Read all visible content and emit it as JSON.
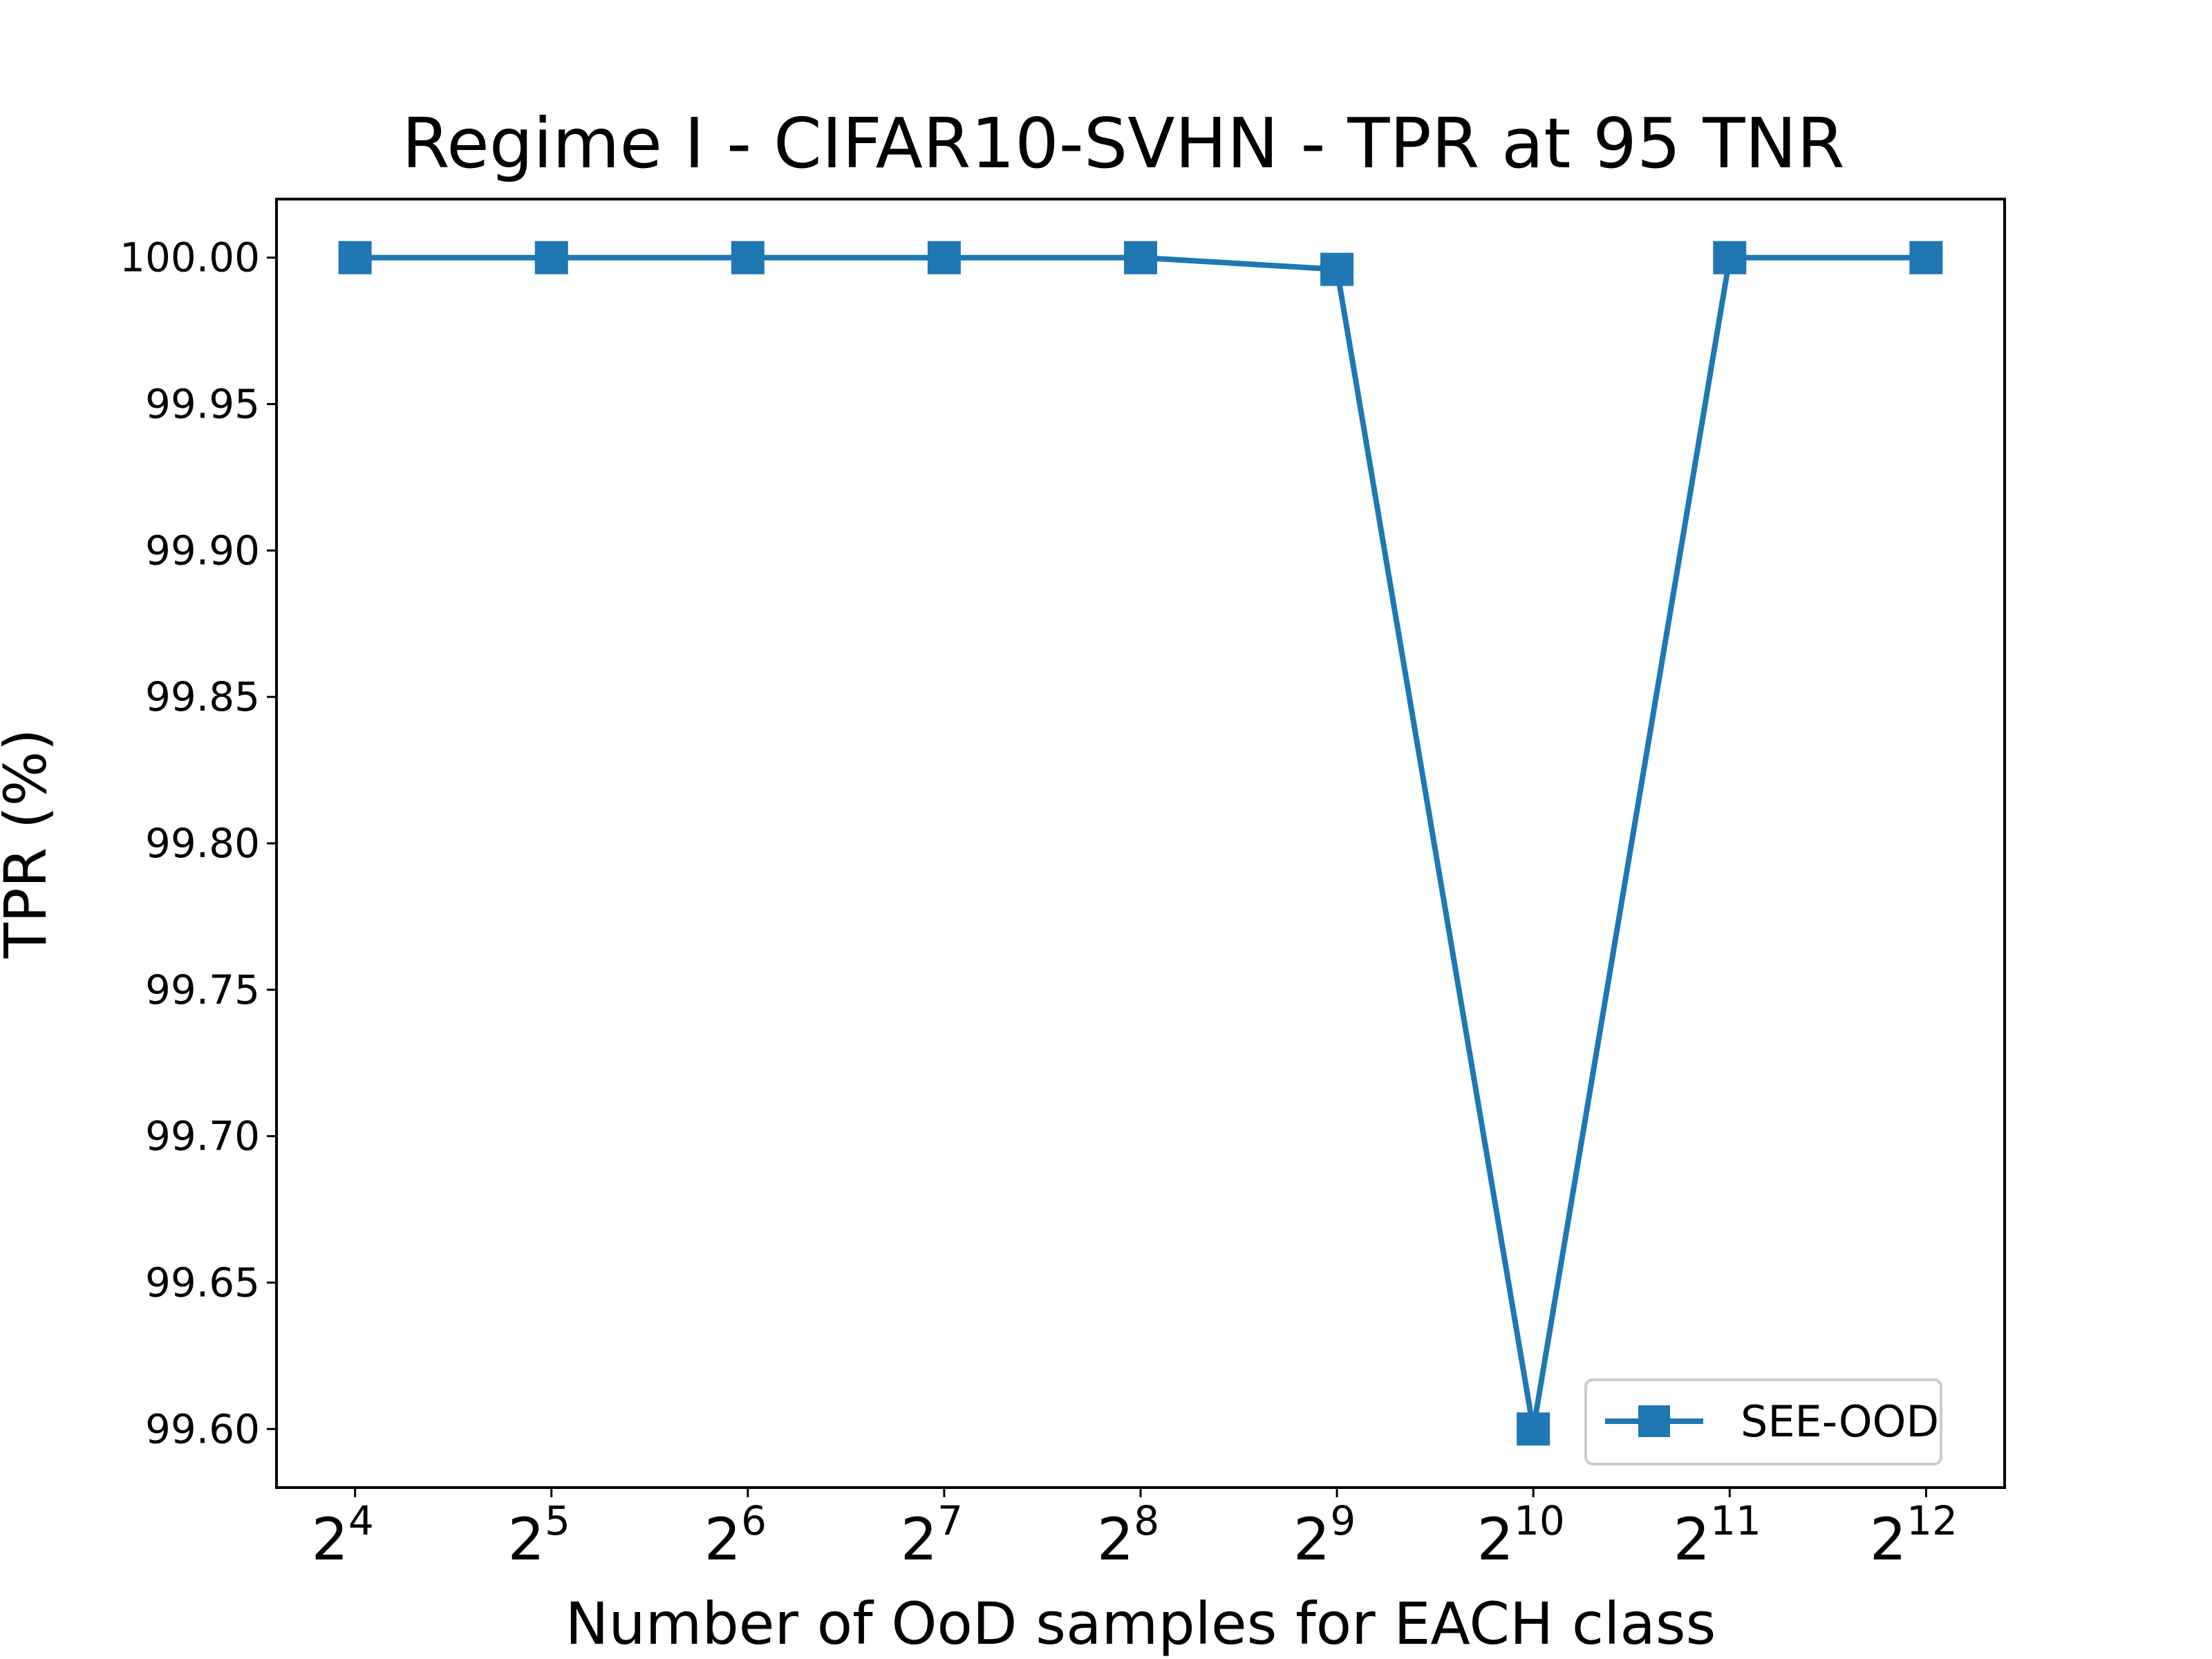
{
  "chart_data": {
    "type": "line",
    "title": "Regime I - CIFAR10-SVHN - TPR at 95 TNR",
    "xlabel": "Number of OoD samples for EACH class",
    "ylabel": "TPR (%)",
    "x_ticks": [
      {
        "base": "2",
        "exp": "4"
      },
      {
        "base": "2",
        "exp": "5"
      },
      {
        "base": "2",
        "exp": "6"
      },
      {
        "base": "2",
        "exp": "7"
      },
      {
        "base": "2",
        "exp": "8"
      },
      {
        "base": "2",
        "exp": "9"
      },
      {
        "base": "2",
        "exp": "10"
      },
      {
        "base": "2",
        "exp": "11"
      },
      {
        "base": "2",
        "exp": "12"
      }
    ],
    "x": [
      16,
      32,
      64,
      128,
      256,
      512,
      1024,
      2048,
      4096
    ],
    "x_scale": "log2",
    "ylim": [
      99.58,
      100.02
    ],
    "y_ticks": [
      "99.60",
      "99.65",
      "99.70",
      "99.75",
      "99.80",
      "99.85",
      "99.90",
      "99.95",
      "100.00"
    ],
    "series": [
      {
        "name": "SEE-OOD",
        "color": "#1f77b4",
        "marker": "square",
        "values": [
          100.0,
          100.0,
          100.0,
          100.0,
          100.0,
          99.996,
          99.6,
          100.0,
          100.0
        ]
      }
    ],
    "legend": "lower-right",
    "grid": false
  }
}
